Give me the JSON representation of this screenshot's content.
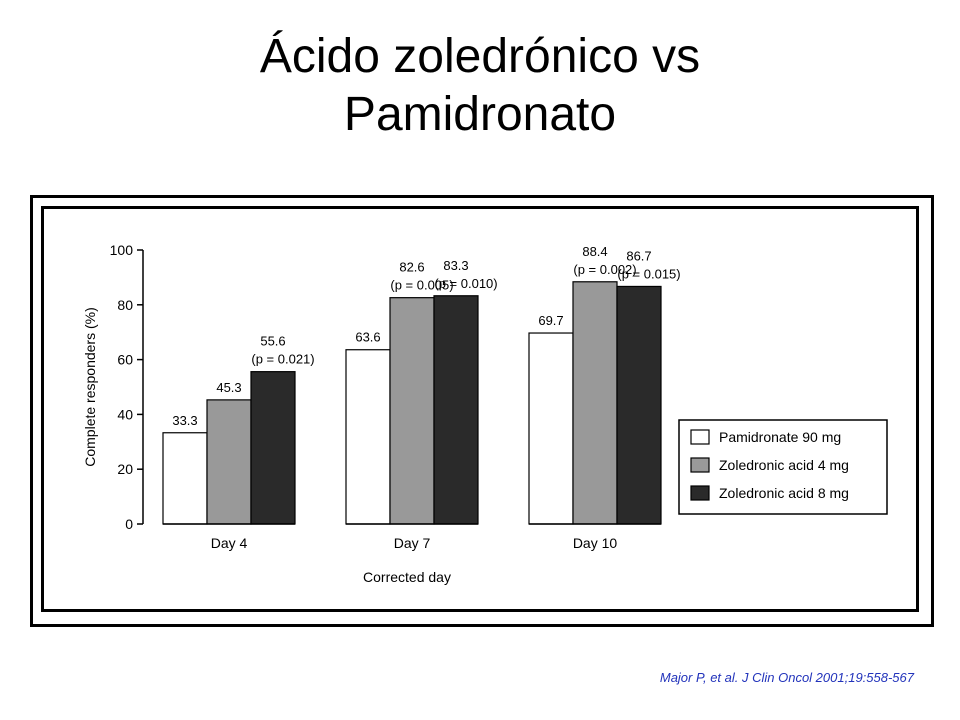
{
  "title": {
    "line1": "Ácido zoledrónico vs",
    "line2": "Pamidronato"
  },
  "citation": "Major P, et al. J Clin Oncol 2001;19:558-567",
  "chart_data": {
    "type": "bar",
    "xlabel": "Corrected day",
    "ylabel": "Complete responders (%)",
    "ylim": [
      0,
      100
    ],
    "yticks": [
      0,
      20,
      40,
      60,
      80,
      100
    ],
    "categories": [
      "Day 4",
      "Day 7",
      "Day 10"
    ],
    "legend_position": "bottom-right",
    "series": [
      {
        "name": "Pamidronate 90 mg",
        "color": "#ffffff",
        "values": [
          33.3,
          63.6,
          69.7
        ],
        "labels": [
          "33.3",
          "63.6",
          "69.7"
        ],
        "pvalues": [
          null,
          null,
          null
        ]
      },
      {
        "name": "Zoledronic acid 4 mg",
        "color": "#999999",
        "values": [
          45.3,
          82.6,
          88.4
        ],
        "labels": [
          "45.3",
          "82.6",
          "88.4"
        ],
        "pvalues": [
          null,
          "(p = 0.005)",
          "(p = 0.002)"
        ]
      },
      {
        "name": "Zoledronic acid 8 mg",
        "color": "#2a2a2a",
        "values": [
          55.6,
          83.3,
          86.7
        ],
        "labels": [
          "55.6",
          "83.3",
          "86.7"
        ],
        "pvalues": [
          "(p = 0.021)",
          "(p = 0.010)",
          "(p = 0.015)"
        ]
      }
    ]
  }
}
